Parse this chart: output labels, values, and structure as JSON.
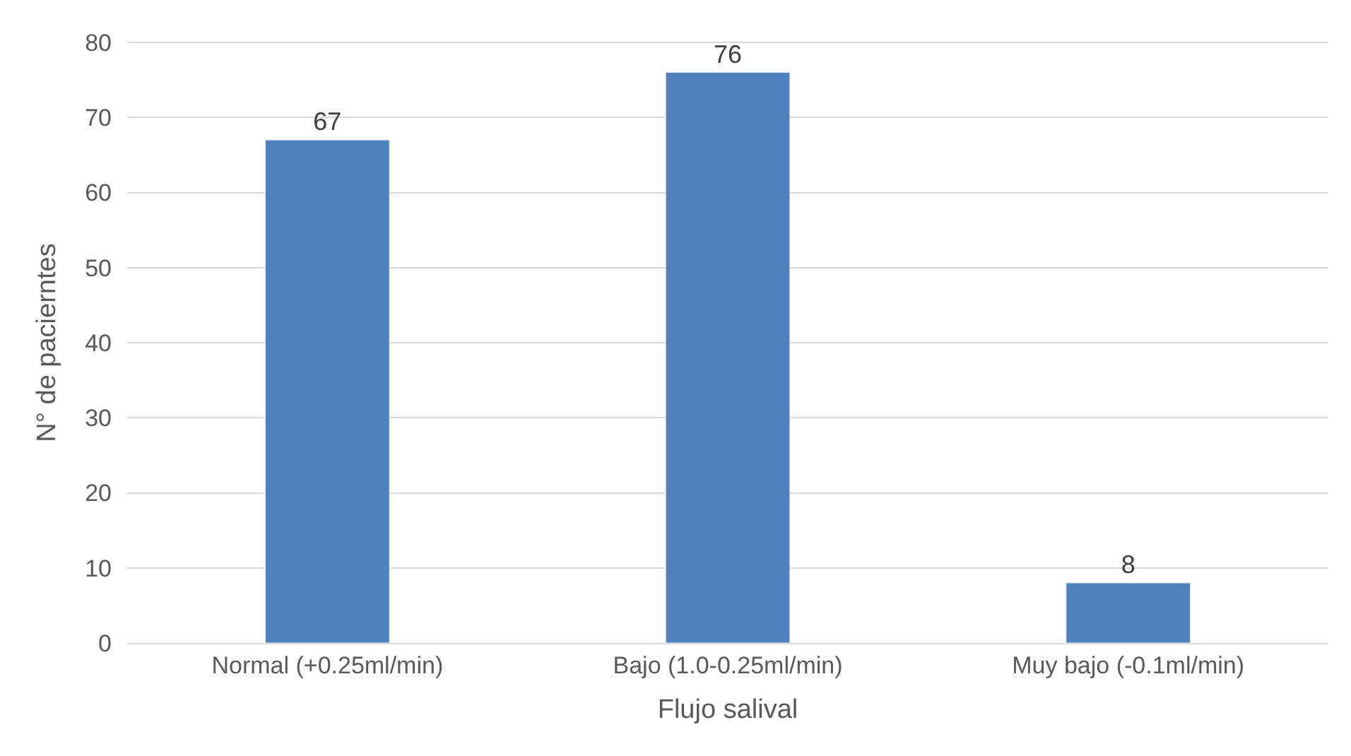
{
  "chart_data": {
    "type": "bar",
    "xlabel": "Flujo salival",
    "ylabel": "N° de pacierntes",
    "categories": [
      "Normal (+0.25ml/min)",
      "Bajo (1.0-0.25ml/min)",
      "Muy bajo (-0.1ml/min)"
    ],
    "values": [
      67,
      76,
      8
    ],
    "color": "#4f81bd",
    "ylim": [
      0,
      80
    ],
    "yticks": [
      0,
      10,
      20,
      30,
      40,
      50,
      60,
      70,
      80
    ],
    "grid": "y",
    "data_labels": true
  }
}
